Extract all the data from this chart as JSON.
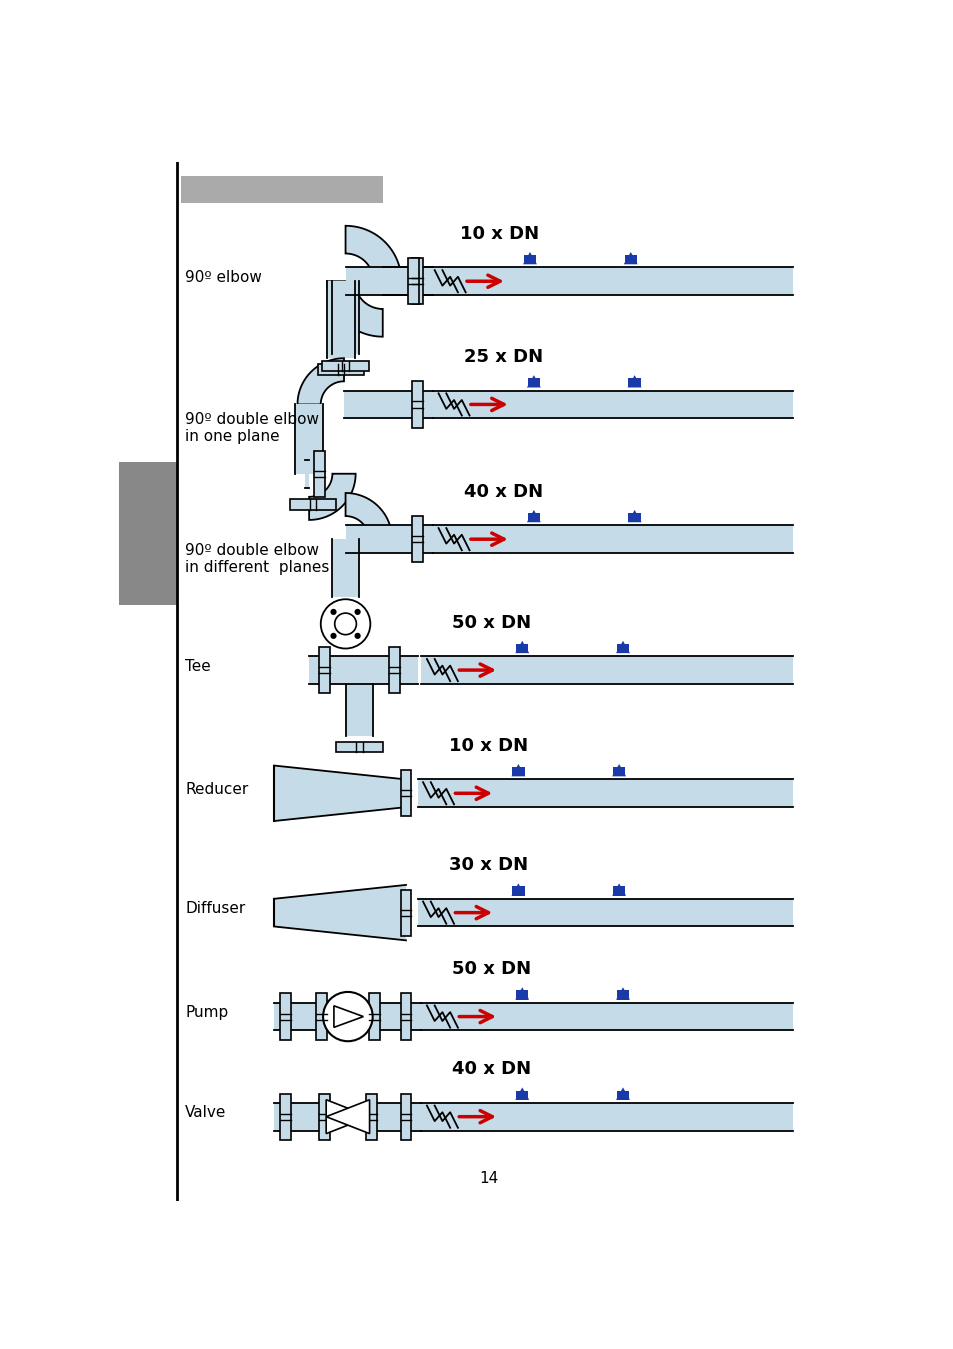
{
  "page_number": "14",
  "bg": "#ffffff",
  "pipe_fill": "#c5dce8",
  "pipe_edge": "#000000",
  "arrow_color": "#cc0000",
  "sensor_color": "#1a3aaa",
  "gray_bar": "#aaaaaa",
  "sidebar": "#888888",
  "rows": [
    {
      "label1": "90º elbow",
      "label2": "",
      "dn": "10 x DN",
      "type": "elbow90"
    },
    {
      "label1": "90º double elbow",
      "label2": "in one plane",
      "dn": "25 x DN",
      "type": "double_elbow_same"
    },
    {
      "label1": "90º double elbow",
      "label2": "in different  planes",
      "dn": "40 x DN",
      "type": "double_elbow_diff"
    },
    {
      "label1": "Tee",
      "label2": "",
      "dn": "50 x DN",
      "type": "tee"
    },
    {
      "label1": "Reducer",
      "label2": "",
      "dn": "10 x DN",
      "type": "reducer"
    },
    {
      "label1": "Diffuser",
      "label2": "",
      "dn": "30 x DN",
      "type": "diffuser"
    },
    {
      "label1": "Pump",
      "label2": "",
      "dn": "50 x DN",
      "type": "pump"
    },
    {
      "label1": "Valve",
      "label2": "",
      "dn": "40 x DN",
      "type": "valve"
    }
  ]
}
